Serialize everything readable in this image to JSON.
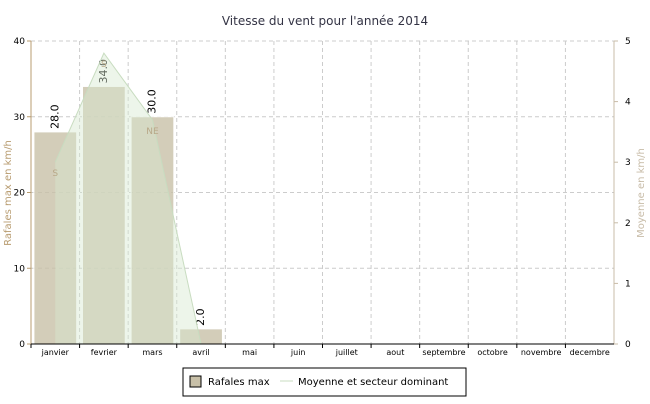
{
  "chart_data": {
    "type": "bar",
    "title": "Vitesse du vent pour l'année 2014",
    "y_label": "Rafales max en km/h",
    "y2_label": "Moyenne en km/h",
    "categories": [
      "janvier",
      "fevrier",
      "mars",
      "avril",
      "mai",
      "juin",
      "juillet",
      "aout",
      "septembre",
      "octobre",
      "novembre",
      "decembre"
    ],
    "ylim": [
      0,
      40
    ],
    "yticks": [
      0,
      10,
      20,
      30,
      40
    ],
    "y2lim": [
      0,
      5
    ],
    "y2ticks": [
      0,
      1,
      2,
      3,
      4,
      5
    ],
    "grid": true,
    "legend": "bottom",
    "series": [
      {
        "name": "Rafales max",
        "color": "#c8c0a8",
        "values": [
          28,
          34,
          30,
          2,
          null,
          null,
          null,
          null,
          null,
          null,
          null,
          null
        ],
        "value_labels": [
          "28.0",
          "34.0",
          "30.0",
          "2.0",
          null,
          null,
          null,
          null,
          null,
          null,
          null,
          null
        ]
      },
      {
        "name": "Moyenne et secteur dominant",
        "color": "#d8e8d0",
        "axis": "y2",
        "type": "line",
        "values": [
          3.0,
          4.8,
          3.7,
          0,
          null,
          null,
          null,
          null,
          null,
          null,
          null,
          null
        ],
        "sectors": [
          "S",
          "S",
          "NE",
          null,
          null,
          null,
          null,
          null,
          null,
          null,
          null,
          null
        ]
      }
    ]
  }
}
